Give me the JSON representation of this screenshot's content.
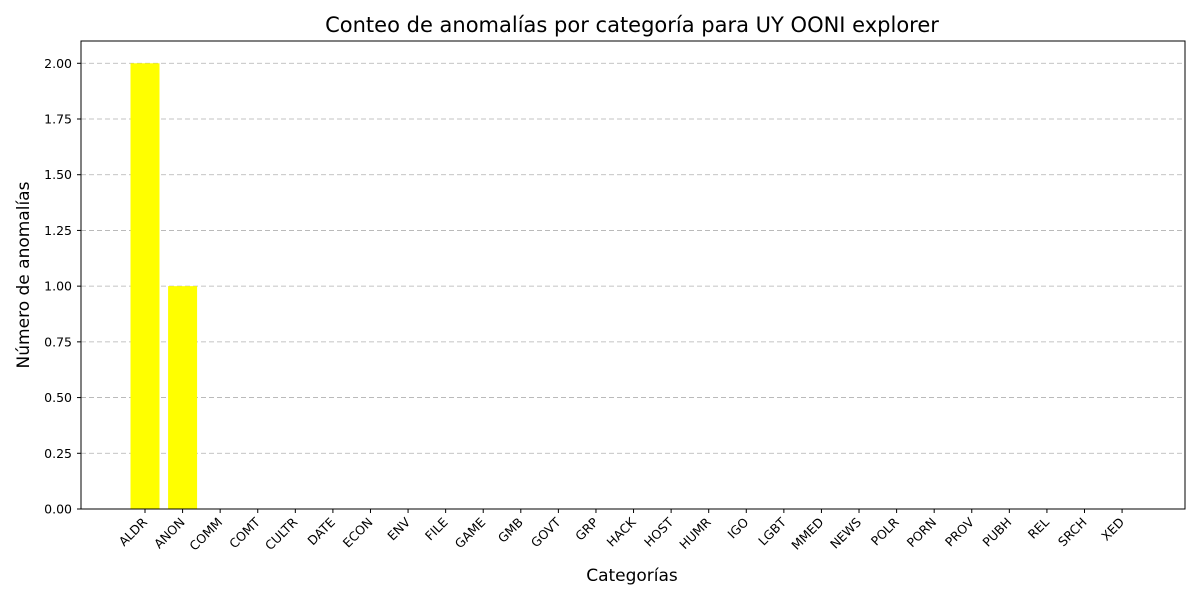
{
  "chart_data": {
    "type": "bar",
    "title": "Conteo de anomalías por categoría para UY OONI explorer",
    "xlabel": "Categorías",
    "ylabel": "Número de anomalías",
    "categories": [
      "ALDR",
      "ANON",
      "COMM",
      "COMT",
      "CULTR",
      "DATE",
      "ECON",
      "ENV",
      "FILE",
      "GAME",
      "GMB",
      "GOVT",
      "GRP",
      "HACK",
      "HOST",
      "HUMR",
      "IGO",
      "LGBT",
      "MMED",
      "NEWS",
      "POLR",
      "PORN",
      "PROV",
      "PUBH",
      "REL",
      "SRCH",
      "XED"
    ],
    "values": [
      2,
      1,
      0,
      0,
      0,
      0,
      0,
      0,
      0,
      0,
      0,
      0,
      0,
      0,
      0,
      0,
      0,
      0,
      0,
      0,
      0,
      0,
      0,
      0,
      0,
      0,
      0
    ],
    "ylim": [
      0,
      2.1
    ],
    "yticks": [
      "0.00",
      "0.25",
      "0.50",
      "0.75",
      "1.00",
      "1.25",
      "1.50",
      "1.75",
      "2.00"
    ],
    "grid": "y-dashed",
    "bar_color": "#ffff00"
  }
}
